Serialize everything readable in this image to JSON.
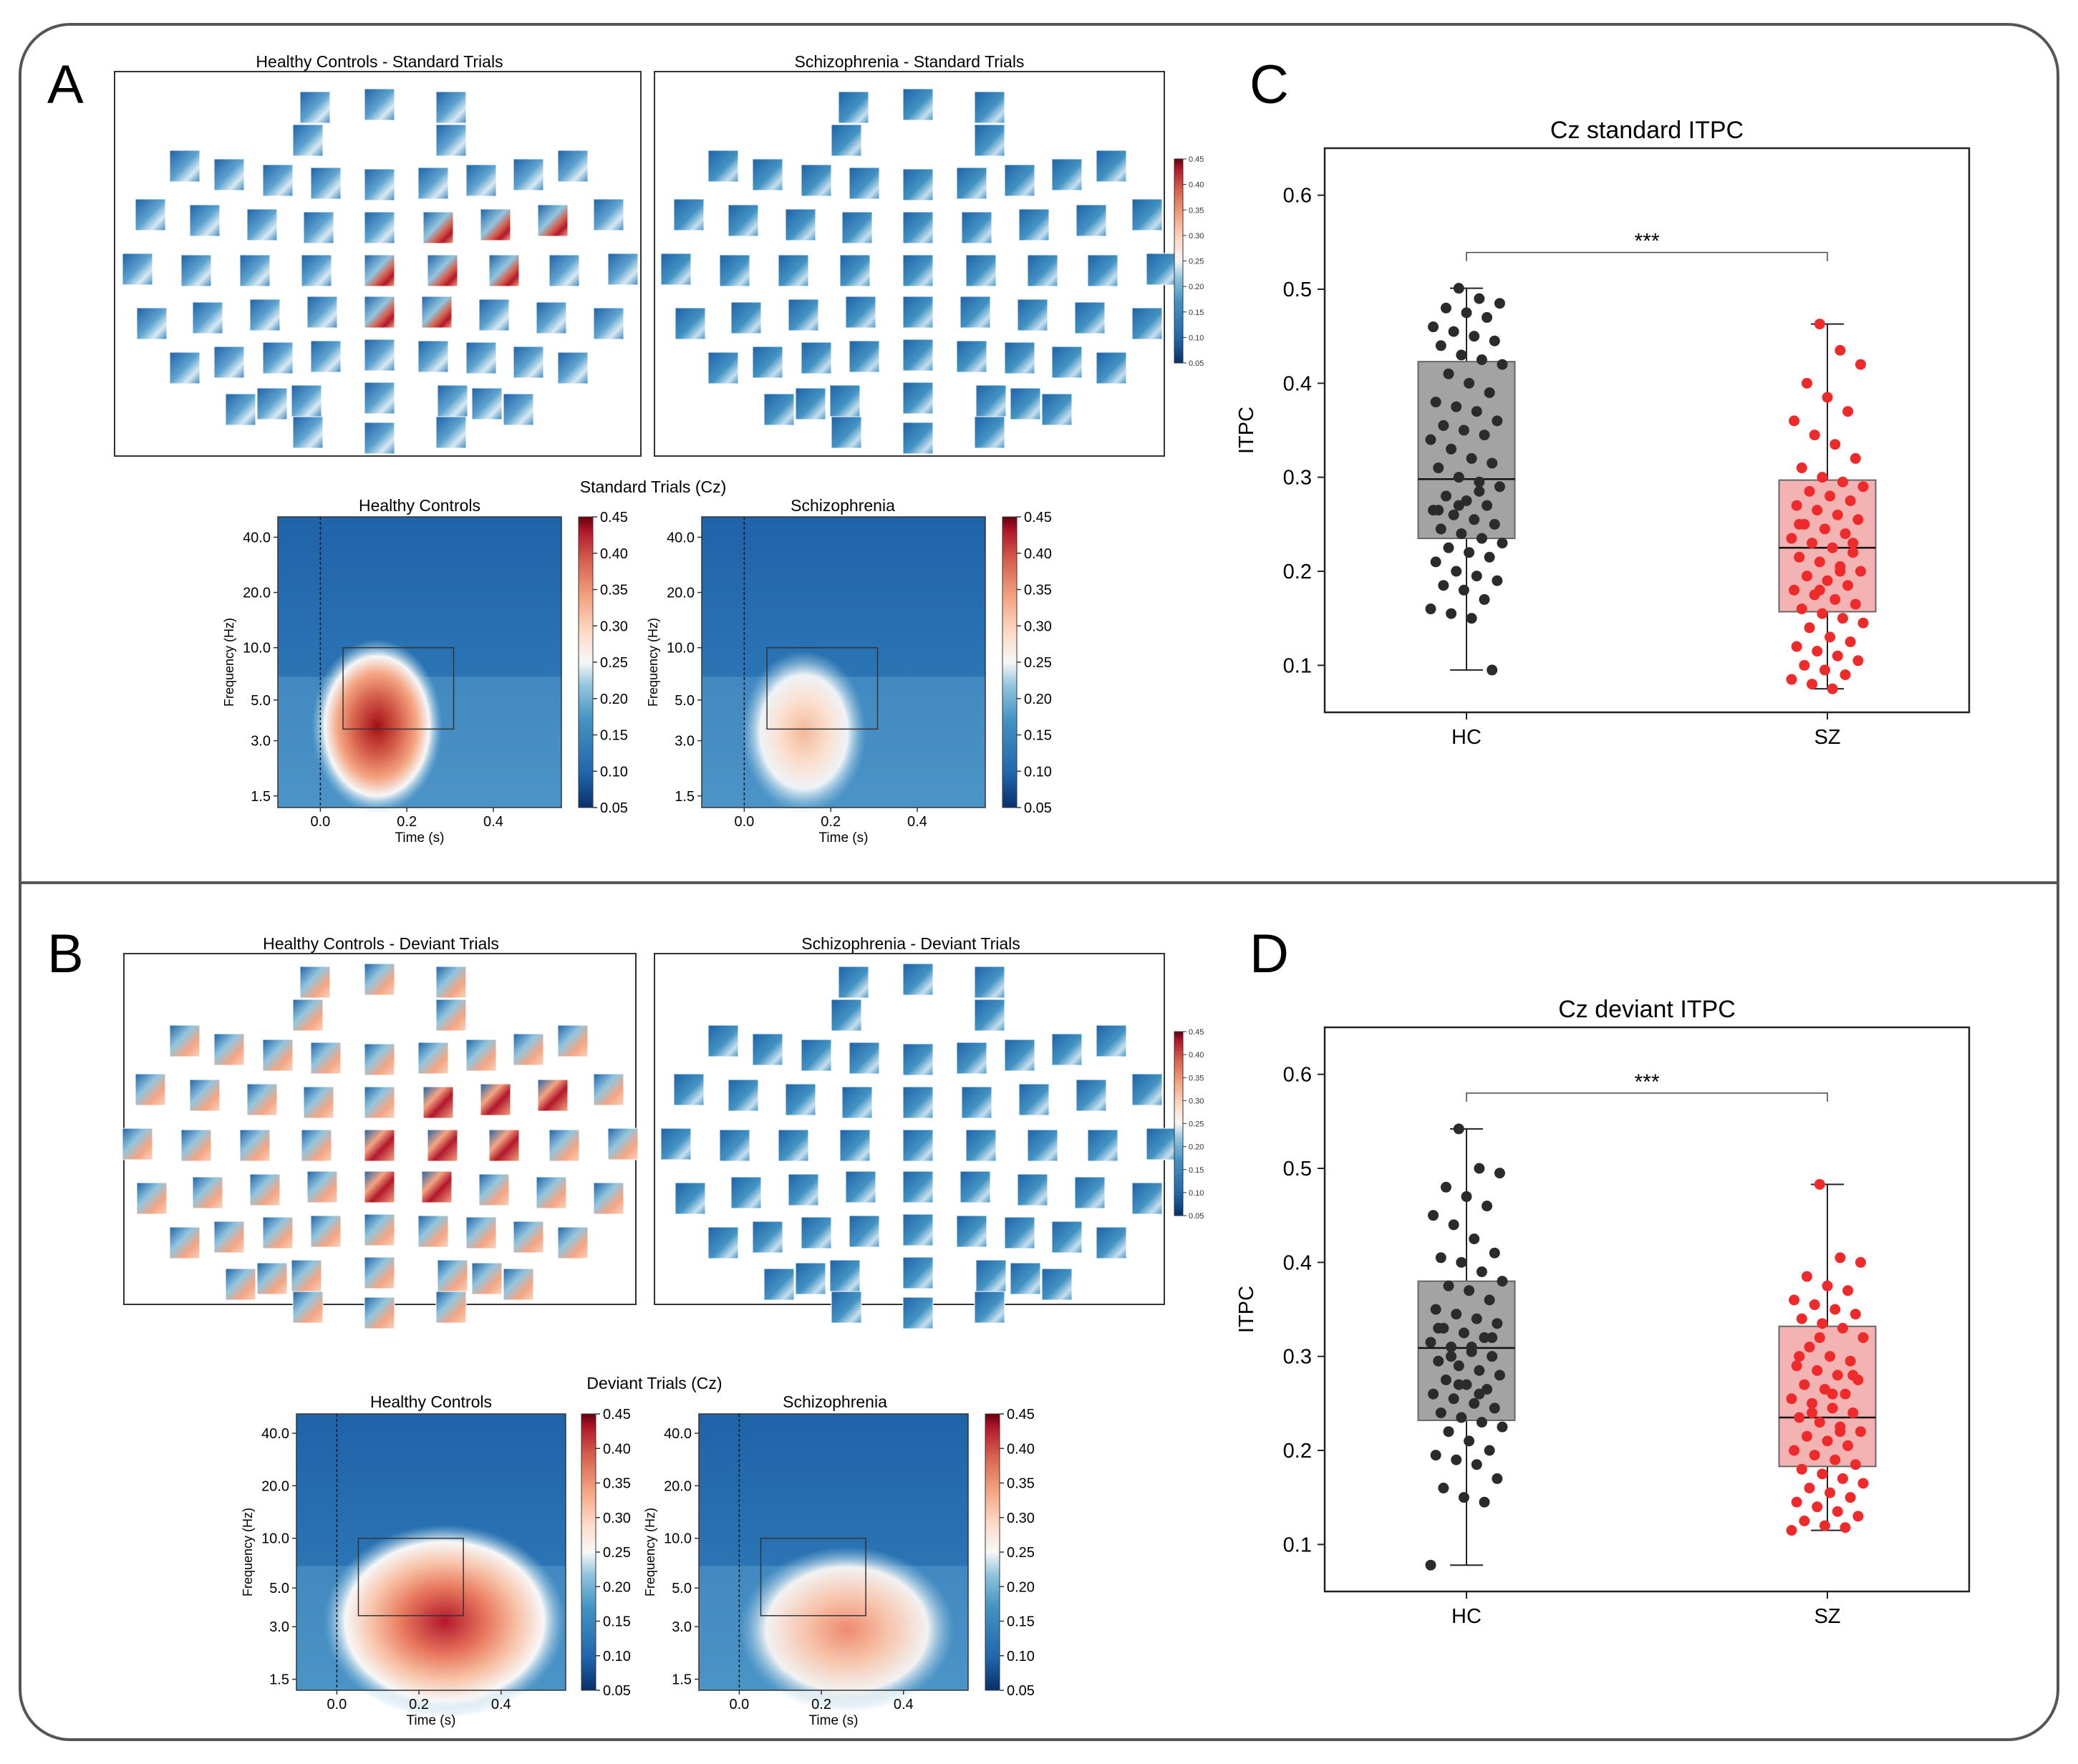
{
  "panels": {
    "A": {
      "letter": "A",
      "topo": [
        {
          "title": "Healthy Controls - Standard Trials"
        },
        {
          "title": "Schizophrenia - Standard Trials"
        }
      ],
      "topo_colorbar_ticks": [
        "0.45",
        "0.40",
        "0.35",
        "0.30",
        "0.25",
        "0.20",
        "0.15",
        "0.10",
        "0.05"
      ],
      "tf_suptitle": "Standard Trials (Cz)",
      "tf": [
        {
          "title": "Healthy Controls"
        },
        {
          "title": "Schizophrenia"
        }
      ]
    },
    "B": {
      "letter": "B",
      "topo": [
        {
          "title": "Healthy Controls - Deviant Trials"
        },
        {
          "title": "Schizophrenia - Deviant Trials"
        }
      ],
      "topo_colorbar_ticks": [
        "0.45",
        "0.40",
        "0.35",
        "0.30",
        "0.25",
        "0.20",
        "0.15",
        "0.10",
        "0.05"
      ],
      "tf_suptitle": "Deviant Trials (Cz)",
      "tf": [
        {
          "title": "Healthy Controls"
        },
        {
          "title": "Schizophrenia"
        }
      ]
    },
    "C": {
      "letter": "C"
    },
    "D": {
      "letter": "D"
    }
  },
  "tf_axes": {
    "ylabel": "Frequency (Hz)",
    "xlabel": "Time (s)",
    "yticks": [
      "40.0",
      "20.0",
      "10.0",
      "5.0",
      "3.0",
      "1.5"
    ],
    "xticks": [
      "0.0",
      "0.2",
      "0.4"
    ],
    "colorbar_ticks": [
      "0.45",
      "0.40",
      "0.35",
      "0.30",
      "0.25",
      "0.20",
      "0.15",
      "0.10",
      "0.05"
    ]
  },
  "colors": {
    "hc_points": "#2b2b2b",
    "hc_box": "#a3a3a3",
    "sz_points": "#ee2a2a",
    "sz_box": "#f4b3b3",
    "cmap_low": "#08306b",
    "cmap_mid": "#f7f7f7",
    "cmap_high": "#67000d"
  },
  "chart_data": [
    {
      "type": "box",
      "title": "Cz standard ITPC",
      "ylabel": "ITPC",
      "xlabel": "",
      "categories": [
        "HC",
        "SZ"
      ],
      "ylim": [
        0.05,
        0.65
      ],
      "yticks": [
        "0.1",
        "0.2",
        "0.3",
        "0.4",
        "0.5",
        "0.6"
      ],
      "significance": "***",
      "boxes": [
        {
          "group": "HC",
          "min": 0.095,
          "q1": 0.235,
          "median": 0.298,
          "q3": 0.423,
          "max": 0.501
        },
        {
          "group": "SZ",
          "min": 0.075,
          "q1": 0.157,
          "median": 0.225,
          "q3": 0.297,
          "max": 0.463
        }
      ],
      "points": {
        "HC": [
          0.501,
          0.49,
          0.485,
          0.48,
          0.475,
          0.47,
          0.46,
          0.455,
          0.45,
          0.445,
          0.44,
          0.43,
          0.425,
          0.42,
          0.41,
          0.4,
          0.39,
          0.38,
          0.375,
          0.37,
          0.36,
          0.355,
          0.35,
          0.345,
          0.34,
          0.33,
          0.32,
          0.315,
          0.31,
          0.3,
          0.295,
          0.29,
          0.28,
          0.275,
          0.27,
          0.265,
          0.26,
          0.255,
          0.25,
          0.245,
          0.24,
          0.235,
          0.23,
          0.225,
          0.22,
          0.215,
          0.21,
          0.2,
          0.195,
          0.19,
          0.185,
          0.18,
          0.17,
          0.16,
          0.155,
          0.15,
          0.095,
          0.265,
          0.27,
          0.285
        ],
        "SZ": [
          0.463,
          0.435,
          0.42,
          0.4,
          0.385,
          0.37,
          0.36,
          0.345,
          0.335,
          0.32,
          0.31,
          0.3,
          0.295,
          0.29,
          0.285,
          0.28,
          0.275,
          0.27,
          0.265,
          0.26,
          0.255,
          0.25,
          0.245,
          0.24,
          0.235,
          0.23,
          0.225,
          0.22,
          0.215,
          0.21,
          0.205,
          0.2,
          0.195,
          0.19,
          0.185,
          0.18,
          0.175,
          0.17,
          0.165,
          0.16,
          0.155,
          0.15,
          0.145,
          0.14,
          0.13,
          0.125,
          0.12,
          0.115,
          0.11,
          0.105,
          0.1,
          0.095,
          0.09,
          0.085,
          0.08,
          0.075,
          0.23,
          0.25,
          0.18,
          0.2
        ]
      }
    },
    {
      "type": "box",
      "title": "Cz deviant ITPC",
      "ylabel": "ITPC",
      "xlabel": "",
      "categories": [
        "HC",
        "SZ"
      ],
      "ylim": [
        0.05,
        0.65
      ],
      "yticks": [
        "0.1",
        "0.2",
        "0.3",
        "0.4",
        "0.5",
        "0.6"
      ],
      "significance": "***",
      "boxes": [
        {
          "group": "HC",
          "min": 0.078,
          "q1": 0.232,
          "median": 0.309,
          "q3": 0.38,
          "max": 0.542
        },
        {
          "group": "SZ",
          "min": 0.115,
          "q1": 0.183,
          "median": 0.235,
          "q3": 0.332,
          "max": 0.483
        }
      ],
      "points": {
        "HC": [
          0.542,
          0.5,
          0.495,
          0.48,
          0.47,
          0.46,
          0.45,
          0.44,
          0.425,
          0.41,
          0.405,
          0.4,
          0.39,
          0.38,
          0.375,
          0.37,
          0.36,
          0.35,
          0.345,
          0.34,
          0.335,
          0.33,
          0.325,
          0.32,
          0.315,
          0.31,
          0.305,
          0.3,
          0.295,
          0.29,
          0.285,
          0.28,
          0.275,
          0.27,
          0.265,
          0.26,
          0.255,
          0.25,
          0.245,
          0.24,
          0.235,
          0.23,
          0.225,
          0.22,
          0.21,
          0.2,
          0.195,
          0.19,
          0.185,
          0.17,
          0.16,
          0.15,
          0.145,
          0.078,
          0.3,
          0.31,
          0.32,
          0.33,
          0.27,
          0.26
        ],
        "SZ": [
          0.483,
          0.405,
          0.4,
          0.385,
          0.375,
          0.37,
          0.36,
          0.355,
          0.35,
          0.345,
          0.34,
          0.335,
          0.33,
          0.32,
          0.31,
          0.3,
          0.295,
          0.29,
          0.285,
          0.28,
          0.275,
          0.27,
          0.265,
          0.26,
          0.255,
          0.25,
          0.245,
          0.24,
          0.235,
          0.23,
          0.225,
          0.22,
          0.215,
          0.21,
          0.205,
          0.2,
          0.195,
          0.19,
          0.185,
          0.18,
          0.175,
          0.17,
          0.165,
          0.16,
          0.155,
          0.15,
          0.145,
          0.14,
          0.135,
          0.13,
          0.125,
          0.12,
          0.118,
          0.115,
          0.24,
          0.26,
          0.28,
          0.3,
          0.32,
          0.22
        ]
      }
    }
  ]
}
